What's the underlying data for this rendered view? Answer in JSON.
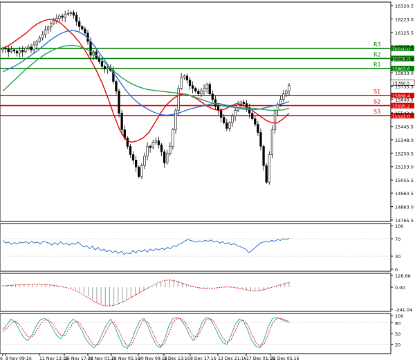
{
  "chart_data": {
    "type": "candlestick",
    "panels": [
      {
        "id": "price",
        "type": "candlestick",
        "ylim": [
          14765.5,
          16320.5
        ],
        "y_ticks": [
          "16320.5",
          "16223.0",
          "16125.5",
          "16028.0",
          "15930.5",
          "15833.0",
          "15735.5",
          "15640.5",
          "15543.0",
          "15445.5",
          "15348.0",
          "15250.5",
          "15153.0",
          "15055.5",
          "14960.5",
          "14863.0",
          "14765.5"
        ],
        "closes": [
          16010,
          16005,
          15985,
          16000,
          15990,
          15975,
          15998,
          15985,
          16012,
          16020,
          16000,
          16035,
          16060,
          16085,
          16110,
          16145,
          16165,
          16192,
          16208,
          16228,
          16245,
          16235,
          16258,
          16262,
          16270,
          16250,
          16205,
          16168,
          16150,
          16120,
          16060,
          15960,
          15985,
          15940,
          15915,
          15880,
          15860,
          15870,
          15850,
          15770,
          15700,
          15540,
          15420,
          15360,
          15300,
          15240,
          15200,
          15150,
          15080,
          15160,
          15230,
          15300,
          15290,
          15330,
          15340,
          15310,
          15260,
          15180,
          15250,
          15300,
          15420,
          15560,
          15720,
          15800,
          15810,
          15780,
          15740,
          15720,
          15700,
          15680,
          15700,
          15720,
          15750,
          15680,
          15640,
          15590,
          15560,
          15510,
          15470,
          15430,
          15470,
          15520,
          15560,
          15600,
          15620,
          15610,
          15580,
          15540,
          15500,
          15460,
          15400,
          15300,
          15160,
          15040,
          15240,
          15420,
          15560,
          15600,
          15640,
          15680,
          15700,
          15740
        ],
        "lines": [
          {
            "name": "",
            "color": "#e00000",
            "values": [
              16010,
              16030,
              16060,
              16090,
              16120,
              16160,
              16190,
              16210,
              16220,
              16215,
              16190,
              16150,
              16110,
              16060,
              16000,
              15930,
              15850,
              15760,
              15650,
              15530,
              15420,
              15350,
              15330,
              15340,
              15360,
              15400,
              15470,
              15540,
              15600,
              15640,
              15670,
              15680,
              15670,
              15650,
              15620,
              15590,
              15570,
              15560,
              15570,
              15590,
              15610,
              15600,
              15580,
              15550,
              15520,
              15490,
              15470,
              15470,
              15500,
              15540
            ]
          },
          {
            "name": "",
            "color": "#3070d0",
            "values": [
              15840,
              15860,
              15880,
              15905,
              15935,
              15965,
              15995,
              16030,
              16065,
              16095,
              16120,
              16135,
              16140,
              16130,
              16105,
              16065,
              16010,
              15950,
              15890,
              15830,
              15770,
              15710,
              15660,
              15620,
              15590,
              15565,
              15545,
              15530,
              15525,
              15530,
              15540,
              15555,
              15570,
              15580,
              15590,
              15600,
              15610,
              15610,
              15600,
              15590,
              15580,
              15570,
              15565,
              15565,
              15570,
              15580,
              15590,
              15600,
              15610,
              15625
            ]
          },
          {
            "name": "",
            "color": "#20a050",
            "values": [
              15700,
              15740,
              15780,
              15820,
              15860,
              15895,
              15930,
              15960,
              15985,
              16005,
              16020,
              16030,
              16032,
              16025,
              16010,
              15990,
              15960,
              15925,
              15885,
              15845,
              15810,
              15780,
              15755,
              15735,
              15720,
              15710,
              15705,
              15700,
              15695,
              15690,
              15685,
              15680,
              15670,
              15655,
              15640,
              15625,
              15610,
              15600,
              15590,
              15585,
              15580,
              15578,
              15576,
              15575,
              15570,
              15565,
              15560,
              15560,
              15565,
              15575
            ]
          }
        ],
        "levels": [
          {
            "label": "R3",
            "value": 16010.0,
            "tag": "16010.0",
            "color": "#008000"
          },
          {
            "label": "R2",
            "value": 15936.8,
            "tag": "15936.8",
            "color": "#008000"
          },
          {
            "label": "R1",
            "value": 15863.6,
            "tag": "15863.6",
            "color": "#008000"
          },
          {
            "label": "S1",
            "value": 15668.4,
            "tag": "15668.4",
            "color": "#e00000"
          },
          {
            "label": "S2",
            "value": 15595.2,
            "tag": "15595.2",
            "color": "#e00000"
          },
          {
            "label": "S3",
            "value": 15522.0,
            "tag": "15522.0",
            "color": "#e00000"
          }
        ],
        "last_price": {
          "value": 15760.5,
          "tag": "15760.5"
        }
      },
      {
        "id": "rsi",
        "type": "line",
        "ylim": [
          0,
          100
        ],
        "y_ticks": [
          "100",
          "70",
          "30",
          "0"
        ],
        "color": "#2060d0",
        "values": [
          66,
          60,
          62,
          57,
          61,
          58,
          62,
          60,
          63,
          59,
          64,
          60,
          62,
          58,
          64,
          62,
          60,
          55,
          61,
          56,
          63,
          57,
          60,
          55,
          60,
          57,
          62,
          56,
          51,
          54,
          47,
          53,
          44,
          50,
          42,
          46,
          40,
          44,
          38,
          42,
          36,
          41,
          34,
          38,
          35,
          43,
          37,
          44,
          40,
          45,
          39,
          46,
          42,
          47,
          44,
          48,
          45,
          50,
          47,
          54,
          52,
          58,
          60,
          65,
          68,
          66,
          64,
          62,
          65,
          63,
          66,
          64,
          67,
          62,
          65,
          60,
          63,
          58,
          61,
          56,
          59,
          54,
          52,
          49,
          46,
          38,
          42,
          48,
          54,
          60,
          62,
          64,
          62,
          66,
          64,
          68,
          66,
          70,
          68,
          71
        ]
      },
      {
        "id": "macd",
        "type": "histogram",
        "ylim": [
          -241.04,
          128.68
        ],
        "y_ticks": [
          "128.68",
          "0.00",
          "-241.04"
        ],
        "bar_color": "#999999",
        "signal_color": "#e00000",
        "histogram": [
          20,
          22,
          25,
          28,
          30,
          32,
          33,
          33,
          32,
          30,
          28,
          25,
          21,
          15,
          8,
          0,
          -10,
          -25,
          -45,
          -70,
          -100,
          -130,
          -160,
          -185,
          -200,
          -205,
          -200,
          -185,
          -165,
          -140,
          -115,
          -90,
          -65,
          -40,
          -15,
          10,
          35,
          60,
          80,
          90,
          85,
          70,
          50,
          30,
          15,
          5,
          -5,
          -10,
          -12,
          -10,
          -5,
          0,
          5,
          5,
          0,
          -10,
          -20,
          -30,
          -38,
          -42,
          -40,
          -30,
          -15,
          0,
          15,
          30,
          45,
          55
        ],
        "signal": [
          15,
          18,
          21,
          24,
          27,
          29,
          30,
          31,
          31,
          30,
          28,
          25,
          20,
          13,
          4,
          -6,
          -20,
          -38,
          -60,
          -86,
          -115,
          -145,
          -172,
          -192,
          -203,
          -205,
          -198,
          -183,
          -162,
          -138,
          -112,
          -86,
          -60,
          -34,
          -8,
          18,
          42,
          62,
          74,
          78,
          72,
          60,
          44,
          28,
          14,
          2,
          -7,
          -12,
          -13,
          -11,
          -7,
          -2,
          2,
          2,
          -2,
          -10,
          -20,
          -30,
          -37,
          -40,
          -37,
          -28,
          -14,
          0,
          14,
          28,
          42,
          52
        ]
      },
      {
        "id": "stochastic",
        "type": "line",
        "ylim": [
          0,
          100
        ],
        "y_ticks": [
          "100",
          "80",
          "50",
          "20"
        ],
        "k_color": "#20a0a0",
        "d_color": "#e00000",
        "k": [
          60,
          75,
          90,
          82,
          60,
          40,
          30,
          45,
          70,
          88,
          92,
          85,
          65,
          45,
          35,
          55,
          78,
          90,
          80,
          60,
          35,
          20,
          10,
          25,
          50,
          75,
          90,
          70,
          40,
          15,
          8,
          30,
          60,
          85,
          92,
          70,
          40,
          18,
          10,
          35,
          70,
          92,
          95,
          88,
          70,
          45,
          30,
          50,
          80,
          95,
          90,
          70,
          45,
          25,
          20,
          45,
          75,
          90,
          85,
          60,
          30,
          15,
          10,
          35,
          70,
          92,
          95,
          90,
          85,
          80
        ],
        "d": [
          55,
          65,
          78,
          85,
          75,
          58,
          42,
          40,
          55,
          75,
          88,
          88,
          78,
          60,
          45,
          45,
          62,
          80,
          84,
          72,
          52,
          32,
          18,
          18,
          35,
          58,
          80,
          80,
          58,
          32,
          15,
          18,
          42,
          70,
          88,
          82,
          58,
          30,
          15,
          22,
          50,
          80,
          92,
          92,
          80,
          60,
          42,
          42,
          65,
          88,
          92,
          82,
          60,
          38,
          25,
          32,
          58,
          82,
          88,
          75,
          48,
          25,
          15,
          22,
          48,
          78,
          92,
          92,
          88,
          84
        ]
      }
    ],
    "x_ticks": [
      "16",
      "8 Nov 09:16",
      "11 Nov 13:16",
      "16 Nov 17:16",
      "22 Nov 01:16",
      "25 Nov 05:16",
      "30 Nov 09:16",
      "3 Dec 13:16",
      "8 Dec 17:16",
      "13 Dec 21:16",
      "17 Dec 01:16",
      "22 Dec 05:16"
    ]
  }
}
